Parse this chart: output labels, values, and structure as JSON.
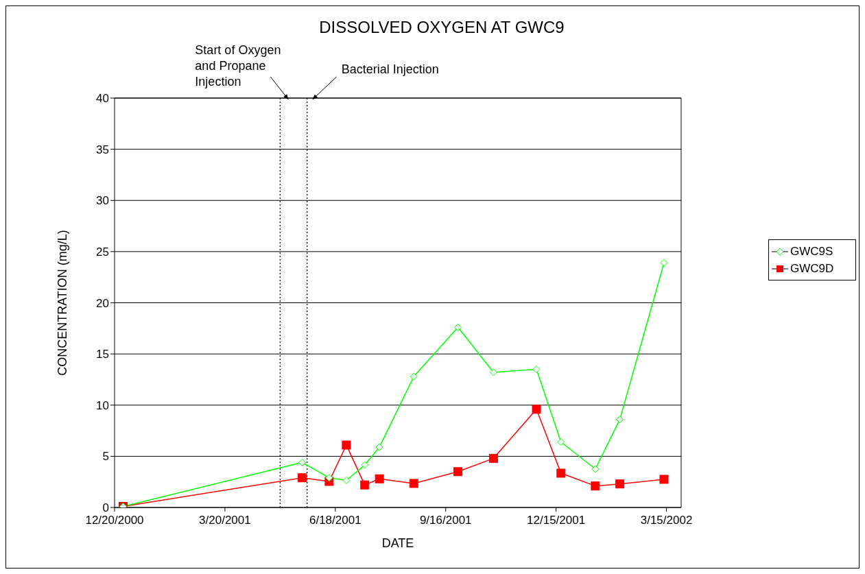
{
  "chart_data": {
    "type": "line",
    "title": "DISSOLVED OXYGEN AT GWC9",
    "xlabel": "DATE",
    "ylabel": "CONCENTRATION (mg/L)",
    "x": [
      "2000-12-27",
      "2001-05-22",
      "2001-06-13",
      "2001-06-27",
      "2001-07-12",
      "2001-07-24",
      "2001-08-21",
      "2001-09-26",
      "2001-10-25",
      "2001-11-29",
      "2001-12-19",
      "2002-01-16",
      "2002-02-05",
      "2002-03-13"
    ],
    "series": [
      {
        "name": "GWC9S",
        "color": "#00ff00",
        "marker": "diamond",
        "values": [
          0.1,
          4.4,
          2.9,
          2.65,
          4.15,
          5.9,
          12.8,
          17.6,
          13.2,
          13.5,
          6.4,
          3.75,
          8.6,
          23.9
        ]
      },
      {
        "name": "GWC9D",
        "color": "#ff0000",
        "marker": "square",
        "values": [
          0.1,
          2.9,
          2.55,
          6.1,
          2.2,
          2.8,
          2.35,
          3.5,
          4.8,
          9.6,
          3.35,
          2.1,
          2.3,
          2.75
        ]
      }
    ],
    "xlim": [
      "2000-12-20",
      "2002-03-27"
    ],
    "xticks": [
      {
        "value": "2000-12-20",
        "label": "12/20/2000"
      },
      {
        "value": "2001-03-20",
        "label": "3/20/2001"
      },
      {
        "value": "2001-06-18",
        "label": "6/18/2001"
      },
      {
        "value": "2001-09-16",
        "label": "9/16/2001"
      },
      {
        "value": "2001-12-15",
        "label": "12/15/2001"
      },
      {
        "value": "2002-03-15",
        "label": "3/15/2002"
      }
    ],
    "ylim": [
      0,
      40
    ],
    "yticks": [
      0,
      5,
      10,
      15,
      20,
      25,
      30,
      35,
      40
    ],
    "ref_lines": [
      {
        "axis": "x",
        "value": "2001-05-04",
        "label": "Start of Oxygen and Propane Injection",
        "line_style": "dotted",
        "color": "#000000"
      },
      {
        "axis": "x",
        "value": "2001-05-26",
        "label": "Bacterial Injection",
        "line_style": "dotted",
        "color": "#000000"
      }
    ],
    "grid": "y",
    "legend": "right",
    "line_style": "solid"
  }
}
